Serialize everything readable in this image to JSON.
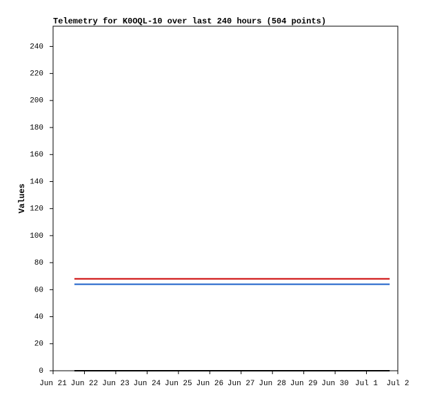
{
  "chart_data": {
    "type": "line",
    "title": "Telemetry for K0OQL-10 over last 240 hours (504 points)",
    "ylabel": "Values",
    "xlim": [
      0,
      11
    ],
    "xticks": [
      {
        "value": 0,
        "label": "Jun 21"
      },
      {
        "value": 1,
        "label": "Jun 22"
      },
      {
        "value": 2,
        "label": "Jun 23"
      },
      {
        "value": 3,
        "label": "Jun 24"
      },
      {
        "value": 4,
        "label": "Jun 25"
      },
      {
        "value": 5,
        "label": "Jun 26"
      },
      {
        "value": 6,
        "label": "Jun 27"
      },
      {
        "value": 7,
        "label": "Jun 28"
      },
      {
        "value": 8,
        "label": "Jun 29"
      },
      {
        "value": 9,
        "label": "Jun 30"
      },
      {
        "value": 10,
        "label": "Jul 1"
      },
      {
        "value": 11,
        "label": "Jul 2"
      }
    ],
    "ylim": [
      0,
      255
    ],
    "yticks": [
      0,
      20,
      40,
      60,
      80,
      100,
      120,
      140,
      160,
      180,
      200,
      220,
      240
    ],
    "grid": false,
    "series": [
      {
        "color": "#cc0000",
        "x": [
          0.68,
          10.74
        ],
        "values": [
          68,
          68
        ]
      },
      {
        "color": "#1a5fc8",
        "x": [
          0.68,
          10.74
        ],
        "values": [
          64,
          64
        ]
      },
      {
        "color": "#000000",
        "x": [
          0.68,
          10.74
        ],
        "values": [
          0,
          0
        ]
      }
    ]
  }
}
